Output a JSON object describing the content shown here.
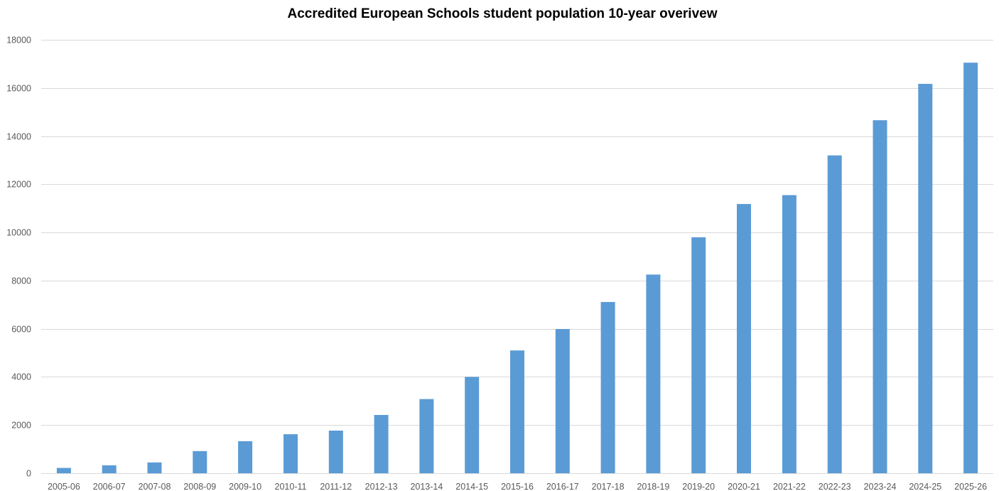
{
  "chart_data": {
    "type": "bar",
    "title": "Accredited European Schools student population 10-year overivew",
    "xlabel": "",
    "ylabel": "",
    "categories": [
      "2005-06",
      "2006-07",
      "2007-08",
      "2008-09",
      "2009-10",
      "2010-11",
      "2011-12",
      "2012-13",
      "2013-14",
      "2014-15",
      "2015-16",
      "2016-17",
      "2017-18",
      "2018-19",
      "2019-20",
      "2020-21",
      "2021-22",
      "2022-23",
      "2023-24",
      "2024-25",
      "2025-26"
    ],
    "values": [
      220,
      330,
      450,
      920,
      1330,
      1620,
      1770,
      2420,
      3080,
      4000,
      5100,
      5990,
      7110,
      8250,
      9800,
      11180,
      11550,
      13200,
      14660,
      16170,
      17050
    ],
    "ylim": [
      0,
      18000
    ],
    "yticks": [
      0,
      2000,
      4000,
      6000,
      8000,
      10000,
      12000,
      14000,
      16000,
      18000
    ],
    "grid": true,
    "legend": "none",
    "colors": {
      "bar": "#5B9BD5",
      "grid": "#D9D9D9",
      "axis": "#D9D9D9",
      "tick_text": "#595959"
    }
  }
}
